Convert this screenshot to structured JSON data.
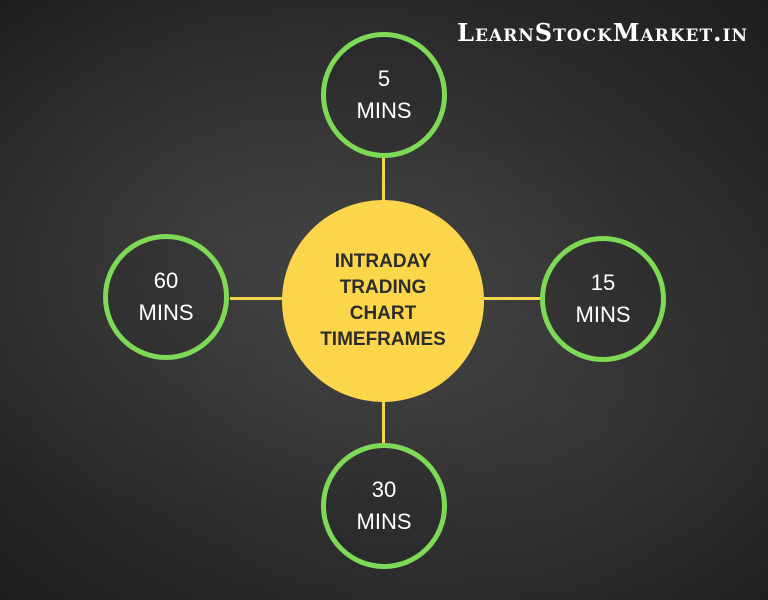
{
  "brand": "LearnStockMarket.in",
  "center": {
    "label": "INTRADAY\nTRADING\nCHART\nTIMEFRAMES"
  },
  "nodes": {
    "top": "5\nMINS",
    "right": "15\nMINS",
    "bottom": "30\nMINS",
    "left": "60\nMINS"
  },
  "colors": {
    "center_fill": "#fcd64a",
    "node_border": "#7ed957",
    "connector": "#f5d54a",
    "background": "#2b2b2b"
  }
}
